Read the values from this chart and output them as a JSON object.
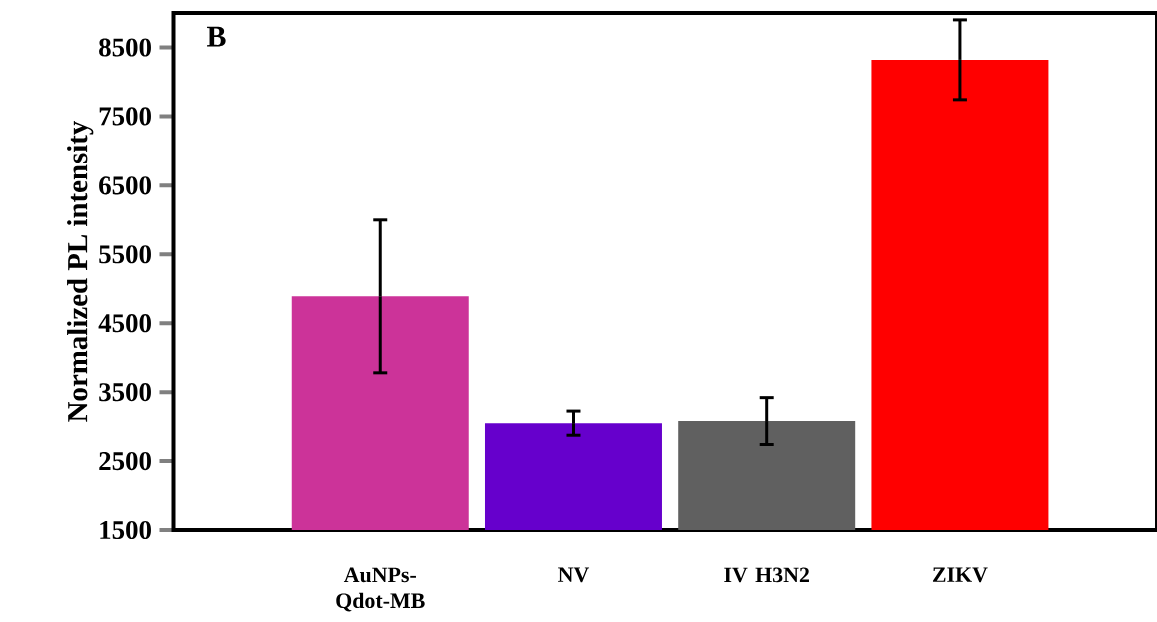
{
  "chart_data": {
    "type": "bar",
    "ylabel": "Normalized PL intensity",
    "categories": [
      "AuNPs-Qdot-MB",
      "NV",
      "IV H3N2",
      "ZIKV"
    ],
    "values": [
      4890,
      3050,
      3080,
      8320
    ],
    "errors": [
      1110,
      175,
      340,
      580
    ],
    "colors": [
      "#cc3399",
      "#6600cc",
      "#606060",
      "#ff0000"
    ],
    "ylim": [
      1500,
      9000
    ],
    "yticks": [
      1500,
      2500,
      3500,
      4500,
      5500,
      6500,
      7500,
      8500
    ],
    "grid": false,
    "annotations": [
      "B"
    ]
  }
}
